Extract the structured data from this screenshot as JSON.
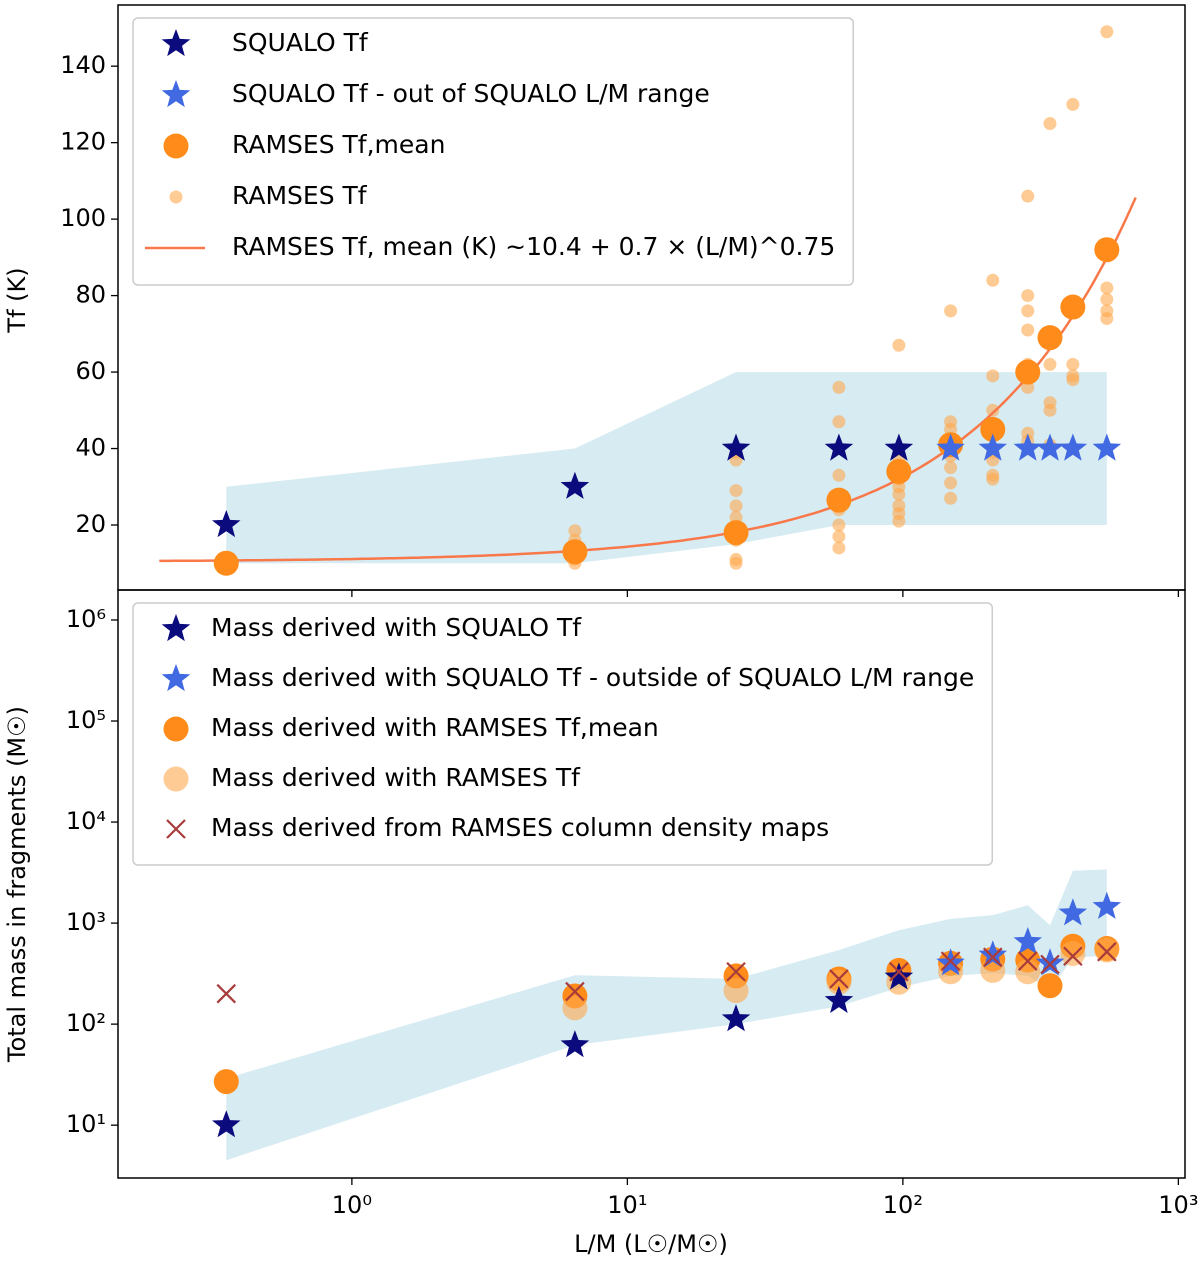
{
  "chart_data": [
    {
      "type": "scatter",
      "ylabel": "Tf (K)",
      "xscale": "log",
      "xlim": [
        0.1416,
        1057
      ],
      "ylim": [
        3,
        156
      ],
      "yticks": [
        20,
        40,
        60,
        80,
        100,
        120,
        140
      ],
      "legend": "upper left",
      "band": {
        "color": "#add8e6",
        "opacity": 0.5,
        "x": [
          0.35,
          6.45,
          24.8,
          58.6,
          96.7,
          149,
          212,
          284,
          342,
          414,
          550
        ],
        "upper": [
          30,
          40,
          60,
          60,
          60,
          60,
          60,
          60,
          60,
          60,
          60
        ],
        "lower": [
          10,
          10,
          15,
          20,
          20,
          20,
          20,
          20,
          20,
          20,
          20
        ]
      },
      "series": [
        {
          "name": "SQUALO Tf",
          "color": "#0b0b7d",
          "marker": "star",
          "x": [
            0.35,
            6.45,
            24.8,
            58.6,
            96.7
          ],
          "values": [
            20,
            30,
            40,
            40,
            40
          ]
        },
        {
          "name": "SQUALO Tf - out of SQUALO L/M range",
          "color": "#4169e1",
          "marker": "star",
          "x": [
            149,
            212,
            284,
            342,
            414,
            550
          ],
          "values": [
            40,
            40,
            40,
            40,
            40,
            40
          ]
        },
        {
          "name": "RAMSES Tf,mean",
          "color": "#ff8c1a",
          "marker": "o",
          "x": [
            0.35,
            6.45,
            24.8,
            58.6,
            96.7,
            149,
            212,
            284,
            342,
            414,
            550
          ],
          "values": [
            10,
            13,
            18,
            26.5,
            34,
            41,
            45,
            60,
            69,
            77,
            92
          ]
        },
        {
          "name": "RAMSES Tf",
          "color": "#ffa94d",
          "opacity": 0.6,
          "marker": ".",
          "x": [
            0.35,
            0.35,
            6.45,
            6.45,
            6.45,
            6.45,
            6.45,
            6.45,
            24.8,
            24.8,
            24.8,
            24.8,
            24.8,
            24.8,
            24.8,
            24.8,
            58.6,
            58.6,
            58.6,
            58.6,
            58.6,
            58.6,
            58.6,
            58.6,
            58.6,
            96.7,
            96.7,
            96.7,
            96.7,
            96.7,
            96.7,
            96.7,
            96.7,
            96.7,
            149,
            149,
            149,
            149,
            149,
            149,
            149,
            149,
            212,
            212,
            212,
            212,
            212,
            212,
            212,
            212,
            284,
            284,
            284,
            284,
            284,
            284,
            284,
            284,
            284,
            342,
            342,
            342,
            342,
            342,
            414,
            414,
            414,
            414,
            550,
            550,
            550,
            550,
            550
          ],
          "values": [
            9.5,
            10.5,
            10,
            11,
            12,
            14,
            16,
            18.5,
            10,
            11,
            16,
            22,
            25,
            29,
            37,
            39,
            14,
            17,
            20,
            24,
            28,
            33,
            40,
            47,
            56,
            21,
            23,
            25,
            28,
            30,
            32,
            35,
            37,
            67,
            27,
            31,
            35,
            38,
            42,
            45,
            47,
            76,
            32,
            33,
            37,
            39,
            44,
            50,
            59,
            84,
            40,
            42,
            44,
            56,
            62,
            71,
            76,
            80,
            106,
            41,
            50,
            52,
            62,
            125,
            58,
            59,
            62,
            130,
            74,
            76,
            79,
            82,
            149
          ]
        }
      ],
      "fit": {
        "name": "RAMSES Tf, mean (K)  ~10.4 + 0.7 × (L/M)^0.75",
        "color": "#f9784a",
        "a": 10.4,
        "b": 0.7,
        "p": 0.75,
        "x_range": [
          0.2,
          700
        ]
      }
    },
    {
      "type": "scatter",
      "ylabel": "Total mass in fragments (M☉)",
      "xlabel": "L/M (L☉/M☉)",
      "xscale": "log",
      "xlim": [
        0.1416,
        1057
      ],
      "xticks": [
        {
          "value": 1,
          "label": "10⁰"
        },
        {
          "value": 10,
          "label": "10¹"
        },
        {
          "value": 100,
          "label": "10²"
        },
        {
          "value": 1000,
          "label": "10³"
        }
      ],
      "yscale": "log",
      "ylim": [
        3,
        1980000
      ],
      "yticks": [
        {
          "value": 10,
          "label": "10¹"
        },
        {
          "value": 100,
          "label": "10²"
        },
        {
          "value": 1000,
          "label": "10³"
        },
        {
          "value": 10000,
          "label": "10⁴"
        },
        {
          "value": 100000,
          "label": "10⁵"
        },
        {
          "value": 1000000,
          "label": "10⁶"
        }
      ],
      "legend": "upper left",
      "band": {
        "color": "#add8e6",
        "opacity": 0.5,
        "x": [
          0.35,
          6.45,
          24.8,
          58.6,
          96.7,
          149,
          212,
          284,
          342,
          414,
          550
        ],
        "upper": [
          29,
          305,
          280,
          540,
          850,
          1100,
          1200,
          1500,
          950,
          3300,
          3400
        ],
        "lower": [
          4.5,
          62,
          100,
          150,
          230,
          300,
          320,
          300,
          220,
          450,
          480
        ]
      },
      "series": [
        {
          "name": "Mass derived with SQUALO Tf",
          "color": "#0b0b7d",
          "marker": "star",
          "x": [
            0.35,
            6.45,
            24.8,
            58.6,
            96.7
          ],
          "values": [
            10,
            62,
            112,
            170,
            290
          ]
        },
        {
          "name": "Mass derived with SQUALO Tf - outside of SQUALO L/M range",
          "color": "#4169e1",
          "marker": "star",
          "x": [
            149,
            212,
            284,
            342,
            414,
            550
          ],
          "values": [
            400,
            480,
            650,
            400,
            1250,
            1450
          ]
        },
        {
          "name": "Mass derived with RAMSES Tf,mean",
          "color": "#ff8c1a",
          "marker": "o",
          "x": [
            0.35,
            6.45,
            24.8,
            58.6,
            96.7,
            149,
            212,
            284,
            342,
            414,
            550
          ],
          "values": [
            27,
            190,
            300,
            280,
            340,
            400,
            440,
            430,
            240,
            590,
            560
          ]
        },
        {
          "name": "Mass derived with RAMSES Tf",
          "color": "#ffa94d",
          "opacity": 0.6,
          "marker": "o",
          "x": [
            6.45,
            24.8,
            58.6,
            96.7,
            149,
            212,
            284,
            414,
            550
          ],
          "values": [
            145,
            215,
            260,
            260,
            330,
            340,
            330,
            500,
            540
          ]
        },
        {
          "name": "Mass derived from RAMSES column density maps",
          "color": "#a83c3c",
          "marker": "x",
          "x": [
            0.35,
            6.45,
            24.8,
            58.6,
            96.7,
            149,
            212,
            284,
            342,
            414,
            550
          ],
          "values": [
            200,
            210,
            330,
            280,
            330,
            420,
            460,
            420,
            390,
            470,
            520
          ]
        }
      ]
    }
  ]
}
